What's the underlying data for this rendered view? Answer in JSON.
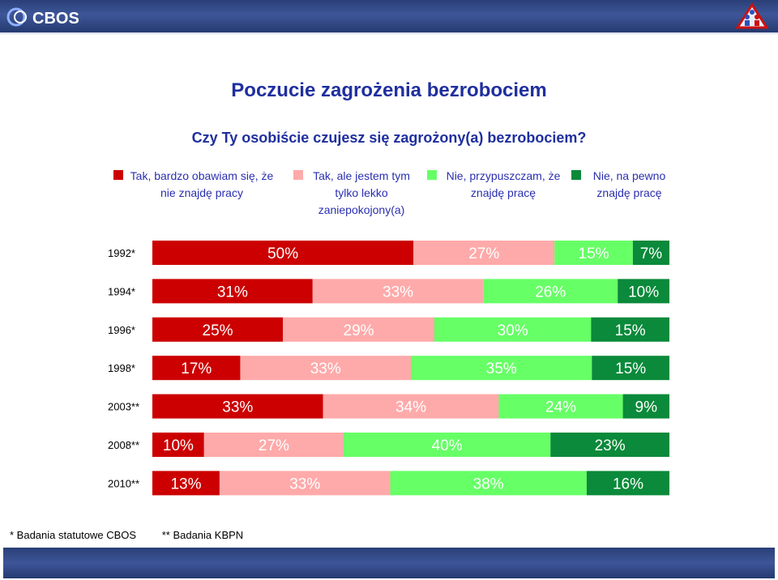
{
  "header": {
    "brand": "CBOS"
  },
  "title": "Poczucie zagrożenia bezrobociem",
  "subtitle": "Czy Ty osobiście czujesz się zagrożony(a) bezrobociem?",
  "legend": [
    {
      "label": "Tak, bardzo obawiam się, że nie znajdę pracy",
      "color": "#cc0000"
    },
    {
      "label": "Tak, ale jestem tym tylko lekko zaniepokojony(a)",
      "color": "#ffaaaa"
    },
    {
      "label": "Nie, przypuszczam, że znajdę pracę",
      "color": "#66ff66"
    },
    {
      "label": "Nie, na pewno znajdę pracę",
      "color": "#0a8a3a"
    }
  ],
  "chart_data": {
    "type": "bar",
    "orientation": "horizontal",
    "stacked": true,
    "normalized": true,
    "categories": [
      "1992*",
      "1994*",
      "1996*",
      "1998*",
      "2003**",
      "2008**",
      "2010**"
    ],
    "series": [
      {
        "name": "Tak, bardzo obawiam się, że nie znajdę pracy",
        "color": "#cc0000",
        "label_color": "#ffffff",
        "values": [
          50,
          31,
          25,
          17,
          33,
          10,
          13
        ]
      },
      {
        "name": "Tak, ale jestem tym tylko lekko zaniepokojony(a)",
        "color": "#ffaaaa",
        "label_color": "#ffffff",
        "values": [
          27,
          33,
          29,
          33,
          34,
          27,
          33
        ]
      },
      {
        "name": "Nie, przypuszczam, że znajdę pracę",
        "color": "#66ff66",
        "label_color": "#ffffff",
        "values": [
          15,
          26,
          30,
          35,
          24,
          40,
          38
        ]
      },
      {
        "name": "Nie, na pewno znajdę pracę",
        "color": "#0a8a3a",
        "label_color": "#ffffff",
        "values": [
          7,
          10,
          15,
          15,
          9,
          23,
          16
        ]
      }
    ],
    "labels": [
      [
        "50%",
        "27%",
        "15%",
        "7%"
      ],
      [
        "31%",
        "33%",
        "26%",
        "10%"
      ],
      [
        "25%",
        "29%",
        "30%",
        "15%"
      ],
      [
        "17%",
        "33%",
        "35%",
        "15%"
      ],
      [
        "33%",
        "34%",
        "24%",
        "9%"
      ],
      [
        "10%",
        "27%",
        "40%",
        "23%"
      ],
      [
        "13%",
        "33%",
        "38%",
        "16%"
      ]
    ]
  },
  "footnotes": [
    "* Badania statutowe CBOS",
    "** Badania KBPN"
  ]
}
